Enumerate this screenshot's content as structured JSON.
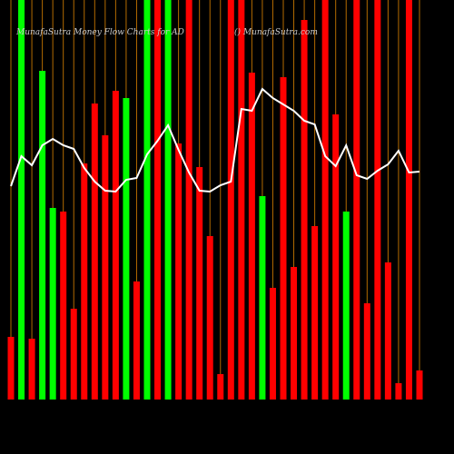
{
  "chart_data": {
    "type": "bar",
    "title": "MunafaSutra  Money Flow  Charts for AD",
    "subtitle": "() MunafaSutra.com",
    "ylim": [
      0,
      440
    ],
    "series": [
      {
        "name": "Money Flow",
        "type": "bar",
        "colors": [
          "#ff0000",
          "#00ff00",
          "#ff0000",
          "#00ff00",
          "#00ff00",
          "#ff0000",
          "#ff0000",
          "#ff0000",
          "#ff0000",
          "#ff0000",
          "#ff0000",
          "#00ff00",
          "#ff0000",
          "#00ff00",
          "#ff0000",
          "#00ff00",
          "#ff0000",
          "#ff0000",
          "#ff0000",
          "#ff0000",
          "#ff0000",
          "#ff0000",
          "#ff0000",
          "#ff0000",
          "#00ff00",
          "#ff0000",
          "#ff0000",
          "#ff0000",
          "#ff0000",
          "#ff0000",
          "#ff0000",
          "#ff0000",
          "#00ff00",
          "#ff0000",
          "#ff0000",
          "#ff0000",
          "#ff0000",
          "#ff0000",
          "#ff0000",
          "#ff0000"
        ],
        "values": [
          69,
          440,
          67,
          362,
          211,
          207,
          100,
          260,
          326,
          291,
          340,
          332,
          130,
          440,
          440,
          440,
          282,
          440,
          256,
          180,
          28,
          440,
          440,
          360,
          224,
          123,
          355,
          146,
          418,
          191,
          440,
          314,
          207,
          440,
          106,
          440,
          151,
          18,
          440,
          32
        ]
      },
      {
        "name": "Trend",
        "type": "line",
        "color": "#ffffff",
        "values": [
          235,
          268,
          258,
          280,
          287,
          280,
          276,
          255,
          240,
          230,
          229,
          242,
          244,
          270,
          285,
          302,
          275,
          250,
          230,
          229,
          236,
          240,
          320,
          318,
          342,
          332,
          325,
          318,
          307,
          303,
          268,
          257,
          280,
          247,
          243,
          252,
          259,
          274,
          250,
          251
        ]
      }
    ],
    "grid_color": "#b36b00",
    "background": "#000000"
  }
}
